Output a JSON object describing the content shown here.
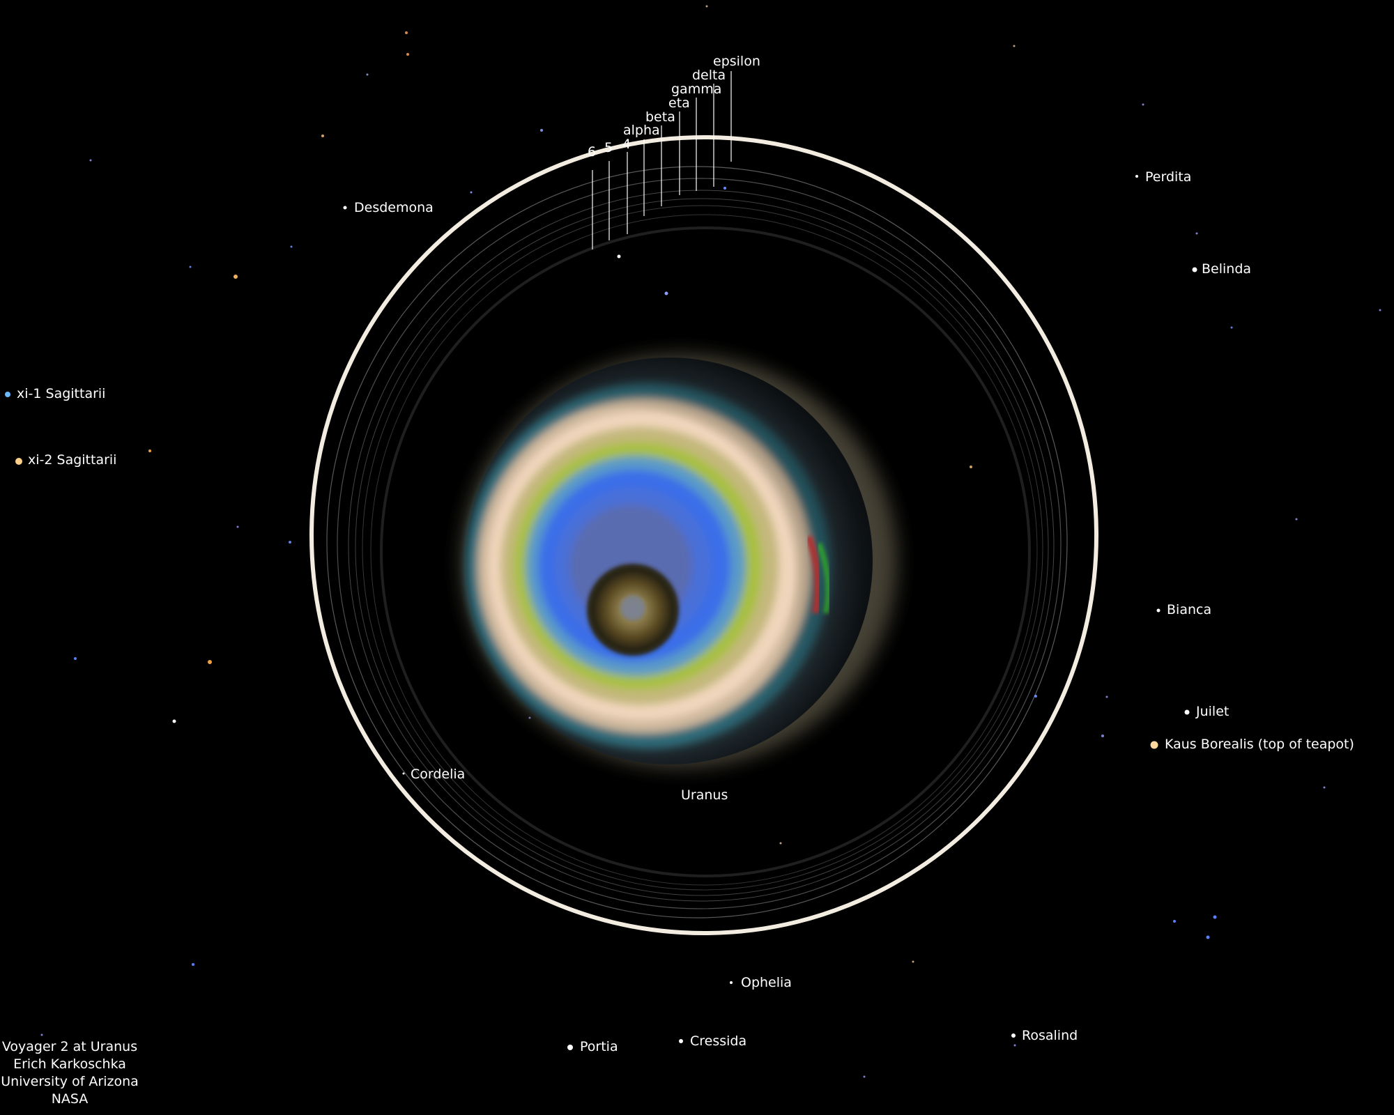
{
  "planet": {
    "name": "Uranus"
  },
  "rings": {
    "labels": [
      "6",
      "5",
      "4",
      "alpha",
      "beta",
      "eta",
      "gamma",
      "delta",
      "epsilon"
    ]
  },
  "moons": {
    "desdemona": "Desdemona",
    "perdita": "Perdita",
    "belinda": "Belinda",
    "bianca": "Bianca",
    "juliet": "Juilet",
    "cordelia": "Cordelia",
    "ophelia": "Ophelia",
    "portia": "Portia",
    "cressida": "Cressida",
    "rosalind": "Rosalind"
  },
  "stars": {
    "xi1": "xi-1 Sagittarii",
    "xi2": "xi-2 Sagittarii",
    "kaus": "Kaus Borealis (top of teapot)"
  },
  "credits": {
    "line1": "Voyager 2 at Uranus",
    "line2": "Erich Karkoschka",
    "line3": "University of Arizona",
    "line4": "NASA"
  },
  "colors": {
    "background": "#000000",
    "outer_ring": "#f3ece0",
    "text": "#ffffff"
  }
}
